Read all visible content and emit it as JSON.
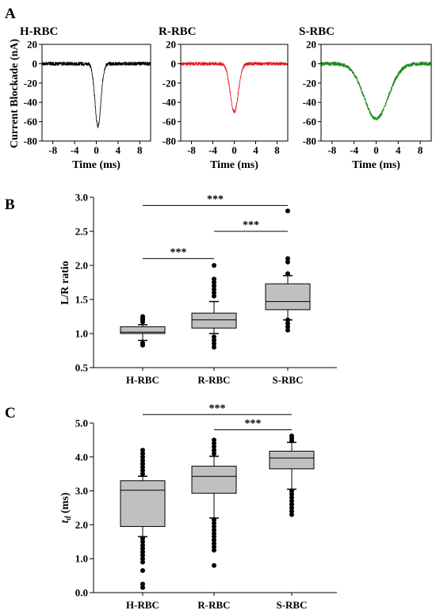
{
  "panel_labels": {
    "a": "A",
    "b": "B",
    "c": "C"
  },
  "colors": {
    "h": "#000000",
    "r": "#e8141b",
    "s": "#1a8a1a",
    "box_fill": "#c0c0c0"
  },
  "chart_data": [
    {
      "type": "line",
      "panel": "A",
      "ylabel": "Current Blockade (nA)",
      "xlabel": "Time (ms)",
      "xlim": [
        -10,
        10
      ],
      "ylim": [
        -80,
        20
      ],
      "xticks": [
        "-8",
        "-4",
        "0",
        "4",
        "8"
      ],
      "yticks": [
        "20",
        "0",
        "-20",
        "-40",
        "-60",
        "-80"
      ],
      "subplots": [
        {
          "title": "H-RBC",
          "color": "#000000",
          "peak_time": 0.3,
          "peak_value": -65,
          "width_ms": 0.55,
          "noise": 2.0
        },
        {
          "title": "R-RBC",
          "color": "#e8141b",
          "peak_time": 0.0,
          "peak_value": -50,
          "width_ms": 0.75,
          "noise": 1.8
        },
        {
          "title": "S-RBC",
          "color": "#1a8a1a",
          "peak_time": 0.0,
          "peak_value": -57,
          "width_ms": 2.2,
          "noise": 2.2
        }
      ]
    },
    {
      "type": "box",
      "panel": "B",
      "ylabel": "L/R ratio",
      "ylim": [
        0.5,
        3.0
      ],
      "yticks": [
        "0.5",
        "1.0",
        "1.5",
        "2.0",
        "2.5",
        "3.0"
      ],
      "categories": [
        "H-RBC",
        "R-RBC",
        "S-RBC"
      ],
      "boxes": [
        {
          "whisker_low": 0.9,
          "q1": 1.0,
          "median": 1.02,
          "q3": 1.1,
          "whisker_high": 1.13,
          "outliers": [
            0.83,
            0.86,
            1.17,
            1.2,
            1.22,
            1.25
          ]
        },
        {
          "whisker_low": 1.0,
          "q1": 1.08,
          "median": 1.2,
          "q3": 1.3,
          "whisker_high": 1.47,
          "outliers": [
            0.8,
            0.85,
            0.9,
            0.95,
            1.55,
            1.6,
            1.65,
            1.7,
            1.75,
            1.8,
            2.0
          ]
        },
        {
          "whisker_low": 1.2,
          "q1": 1.35,
          "median": 1.47,
          "q3": 1.73,
          "whisker_high": 1.85,
          "outliers": [
            1.05,
            1.1,
            1.15,
            1.2,
            1.88,
            2.05,
            2.1,
            2.8
          ]
        }
      ],
      "significance": [
        {
          "from": 0,
          "to": 1,
          "y": 2.1,
          "label": "***"
        },
        {
          "from": 1,
          "to": 2,
          "y": 2.5,
          "label": "***"
        },
        {
          "from": 0,
          "to": 2,
          "y": 2.88,
          "label": "***"
        }
      ]
    },
    {
      "type": "box",
      "panel": "C",
      "ylabel_italic": "t",
      "ylabel_sub": "d",
      "ylabel_rest": " (ms)",
      "ylim": [
        0.0,
        5.0
      ],
      "yticks": [
        "0.0",
        "1.0",
        "2.0",
        "3.0",
        "4.0",
        "5.0"
      ],
      "categories": [
        "H-RBC",
        "R-RBC",
        "S-RBC"
      ],
      "boxes": [
        {
          "whisker_low": 1.65,
          "q1": 1.95,
          "median": 3.02,
          "q3": 3.3,
          "whisker_high": 3.43,
          "outliers": [
            0.15,
            0.25,
            0.65,
            0.9,
            1.0,
            1.1,
            1.2,
            1.3,
            1.4,
            1.5,
            1.6,
            3.5,
            3.6,
            3.7,
            3.8,
            3.9,
            4.0,
            4.1,
            4.2
          ]
        },
        {
          "whisker_low": 2.2,
          "q1": 2.93,
          "median": 3.43,
          "q3": 3.73,
          "whisker_high": 4.02,
          "outliers": [
            0.8,
            1.25,
            1.35,
            1.45,
            1.55,
            1.65,
            1.75,
            1.85,
            1.95,
            2.05,
            2.15,
            4.1,
            4.2,
            4.3,
            4.4,
            4.5
          ]
        },
        {
          "whisker_low": 3.05,
          "q1": 3.65,
          "median": 3.97,
          "q3": 4.17,
          "whisker_high": 4.43,
          "outliers": [
            2.3,
            2.4,
            2.5,
            2.6,
            2.7,
            2.8,
            2.9,
            3.0,
            4.48,
            4.55,
            4.62
          ]
        }
      ],
      "significance": [
        {
          "from": 1,
          "to": 2,
          "y": 4.8,
          "label": "***"
        },
        {
          "from": 0,
          "to": 2,
          "y": 5.25,
          "label": "***"
        }
      ]
    }
  ]
}
